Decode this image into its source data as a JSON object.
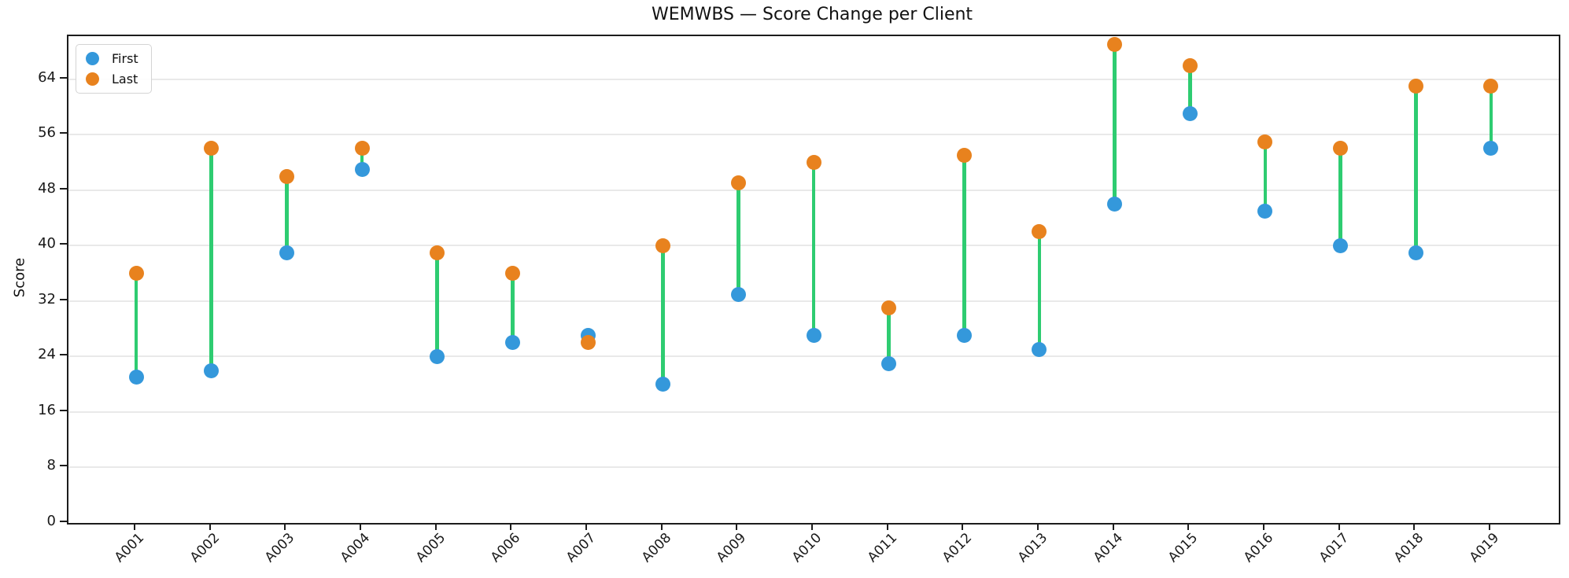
{
  "title": "WEMWBS — Score Change per Client",
  "ylabel": "Score",
  "legend": {
    "first_label": "First",
    "last_label": "Last"
  },
  "colors": {
    "first": "#3498db",
    "last": "#e8821e",
    "connector": "#2ecc71",
    "grid": "#e9e9e9",
    "spine": "#1c1c1c"
  },
  "chart_data": {
    "type": "scatter",
    "subtype": "dumbbell",
    "title": "WEMWBS — Score Change per Client",
    "xlabel": "",
    "ylabel": "Score",
    "categories": [
      "A001",
      "A002",
      "A003",
      "A004",
      "A005",
      "A006",
      "A007",
      "A008",
      "A009",
      "A010",
      "A011",
      "A012",
      "A013",
      "A014",
      "A015",
      "A016",
      "A017",
      "A018",
      "A019"
    ],
    "series": [
      {
        "name": "First",
        "color": "#3498db",
        "values": [
          21,
          22,
          39,
          51,
          24,
          26,
          27,
          20,
          33,
          27,
          23,
          27,
          25,
          46,
          59,
          45,
          40,
          39,
          54
        ]
      },
      {
        "name": "Last",
        "color": "#e8821e",
        "values": [
          36,
          54,
          50,
          54,
          39,
          36,
          26,
          40,
          49,
          52,
          31,
          53,
          42,
          69,
          66,
          55,
          54,
          63,
          63
        ]
      }
    ],
    "connector_color": "#2ecc71",
    "yticks": [
      0,
      8,
      16,
      24,
      32,
      40,
      48,
      56,
      64
    ],
    "ylim": [
      0,
      70.2
    ],
    "xlim_padding": 0.9,
    "grid": "horizontal",
    "legend_position": "upper left",
    "x_tick_rotation": 45
  }
}
